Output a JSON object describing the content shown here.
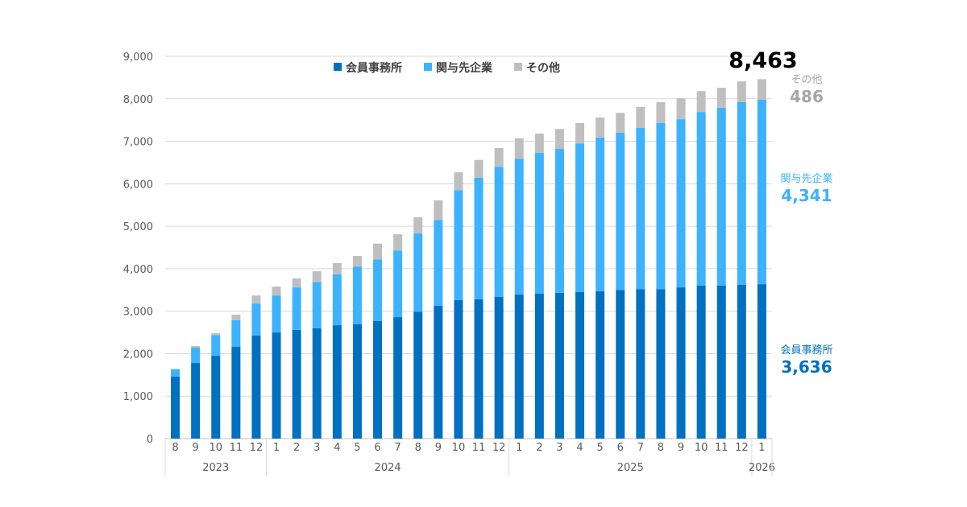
{
  "chart_data": {
    "type": "bar",
    "stacked": true,
    "ylim": [
      0,
      9000
    ],
    "yticks": [
      0,
      1000,
      2000,
      3000,
      4000,
      5000,
      6000,
      7000,
      8000,
      9000
    ],
    "ytick_labels": [
      "0",
      "1,000",
      "2,000",
      "3,000",
      "4,000",
      "5,000",
      "6,000",
      "7,000",
      "8,000",
      "9,000"
    ],
    "grid": true,
    "legend_position": "top",
    "categories": [
      "8",
      "9",
      "10",
      "11",
      "12",
      "1",
      "2",
      "3",
      "4",
      "5",
      "6",
      "7",
      "8",
      "9",
      "10",
      "11",
      "12",
      "1",
      "2",
      "3",
      "4",
      "5",
      "6",
      "7",
      "8",
      "9",
      "10",
      "11",
      "12",
      "1"
    ],
    "year_groups": [
      {
        "label": "2023",
        "count": 5
      },
      {
        "label": "2024",
        "count": 12
      },
      {
        "label": "2025",
        "count": 12
      },
      {
        "label": "2026",
        "count": 1
      }
    ],
    "series": [
      {
        "name": "会員事務所",
        "color": "#0070C0",
        "values": [
          1460,
          1780,
          1950,
          2160,
          2430,
          2500,
          2560,
          2600,
          2670,
          2690,
          2770,
          2860,
          2990,
          3130,
          3260,
          3280,
          3340,
          3390,
          3410,
          3430,
          3450,
          3470,
          3500,
          3520,
          3520,
          3560,
          3600,
          3600,
          3620,
          3636
        ]
      },
      {
        "name": "関与先企業",
        "color": "#3DB2FF",
        "values": [
          170,
          360,
          490,
          630,
          750,
          870,
          1000,
          1090,
          1200,
          1360,
          1450,
          1570,
          1840,
          2020,
          2590,
          2860,
          3060,
          3200,
          3320,
          3390,
          3500,
          3620,
          3700,
          3800,
          3910,
          3960,
          4090,
          4190,
          4300,
          4341
        ]
      },
      {
        "name": "その他",
        "color": "#BFBFBF",
        "values": [
          10,
          40,
          40,
          130,
          190,
          210,
          210,
          250,
          260,
          250,
          370,
          380,
          380,
          460,
          420,
          420,
          440,
          480,
          450,
          470,
          480,
          470,
          470,
          490,
          490,
          490,
          490,
          470,
          490,
          486
        ]
      }
    ],
    "annotations": {
      "total": "8,463",
      "other_label": "その他",
      "other_value": "486",
      "related_label": "関与先企業",
      "related_value": "4,341",
      "member_label": "会員事務所",
      "member_value": "3,636"
    }
  }
}
